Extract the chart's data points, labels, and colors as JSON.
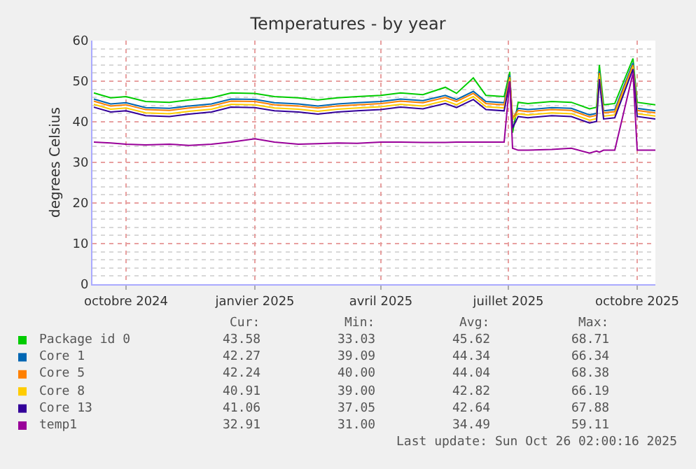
{
  "chart_data": {
    "type": "line",
    "title": "Temperatures - by year",
    "ylabel": "degrees Celsius",
    "x": [
      "2024-09-08",
      "2024-09-20",
      "2024-10-01",
      "2024-10-15",
      "2024-11-01",
      "2024-11-15",
      "2024-12-01",
      "2024-12-15",
      "2025-01-01",
      "2025-01-15",
      "2025-02-01",
      "2025-02-15",
      "2025-03-01",
      "2025-03-15",
      "2025-04-01",
      "2025-04-15",
      "2025-05-01",
      "2025-05-17",
      "2025-05-25",
      "2025-06-06",
      "2025-06-15",
      "2025-06-28",
      "2025-07-02",
      "2025-07-04",
      "2025-07-08",
      "2025-07-15",
      "2025-08-01",
      "2025-08-15",
      "2025-08-28",
      "2025-09-02",
      "2025-09-04",
      "2025-09-07",
      "2025-09-15",
      "2025-09-28",
      "2025-10-01",
      "2025-10-14"
    ],
    "series": [
      {
        "name": "Package id 0",
        "color": "#00cc00",
        "values": [
          47.1,
          45.9,
          46.2,
          45.0,
          44.8,
          45.4,
          45.9,
          47.1,
          47.0,
          46.2,
          45.9,
          45.4,
          45.9,
          46.2,
          46.5,
          47.1,
          46.7,
          48.5,
          47.0,
          50.8,
          46.5,
          46.2,
          52.3,
          37.3,
          44.8,
          44.5,
          45.0,
          44.8,
          43.2,
          43.6,
          54.0,
          44.2,
          44.5,
          55.6,
          44.8,
          44.2
        ]
      },
      {
        "name": "Core 1",
        "color": "#0066b3",
        "values": [
          45.6,
          44.4,
          44.7,
          43.5,
          43.3,
          43.9,
          44.4,
          45.6,
          45.5,
          44.7,
          44.4,
          43.9,
          44.4,
          44.7,
          45.0,
          45.6,
          45.2,
          46.5,
          45.5,
          47.5,
          45.0,
          44.7,
          51.5,
          40.5,
          43.3,
          43.0,
          43.5,
          43.3,
          41.7,
          42.1,
          52.5,
          42.7,
          43.0,
          54.5,
          43.3,
          42.7
        ]
      },
      {
        "name": "Core 5",
        "color": "#ff8000",
        "values": [
          45.1,
          43.9,
          44.2,
          43.0,
          42.8,
          43.4,
          43.9,
          45.1,
          45.0,
          44.2,
          43.9,
          43.4,
          43.9,
          44.2,
          44.5,
          45.1,
          44.7,
          46.0,
          45.0,
          47.0,
          44.5,
          44.2,
          51.0,
          41.0,
          42.8,
          42.5,
          43.0,
          42.8,
          41.2,
          41.6,
          52.0,
          42.2,
          42.5,
          54.0,
          42.8,
          42.2
        ]
      },
      {
        "name": "Core 8",
        "color": "#ffcc00",
        "values": [
          44.3,
          43.1,
          43.4,
          42.2,
          42.0,
          42.6,
          43.1,
          44.3,
          44.2,
          43.4,
          43.1,
          42.6,
          43.1,
          43.4,
          43.7,
          44.3,
          43.9,
          45.2,
          44.2,
          46.2,
          43.7,
          43.4,
          50.5,
          40.5,
          42.0,
          41.7,
          42.2,
          42.0,
          40.4,
          40.8,
          51.5,
          41.4,
          41.7,
          53.5,
          42.0,
          41.4
        ]
      },
      {
        "name": "Core 13",
        "color": "#330099",
        "values": [
          43.6,
          42.4,
          42.7,
          41.5,
          41.3,
          41.9,
          42.4,
          43.6,
          43.5,
          42.7,
          42.4,
          41.9,
          42.4,
          42.7,
          43.0,
          43.6,
          43.2,
          44.5,
          43.5,
          45.5,
          43.0,
          42.7,
          50.0,
          38.5,
          41.3,
          41.0,
          41.5,
          41.3,
          39.7,
          40.1,
          50.5,
          40.7,
          41.0,
          53.0,
          41.3,
          40.7
        ]
      },
      {
        "name": "temp1",
        "color": "#990099",
        "values": [
          35.0,
          34.8,
          34.5,
          34.3,
          34.5,
          34.2,
          34.5,
          35.0,
          35.8,
          35.0,
          34.5,
          34.6,
          34.8,
          34.7,
          35.0,
          35.0,
          34.9,
          34.9,
          35.0,
          35.0,
          35.0,
          35.0,
          50.0,
          33.5,
          33.0,
          33.0,
          33.2,
          33.5,
          32.3,
          32.8,
          32.5,
          33.0,
          33.0,
          52.0,
          33.0,
          33.0
        ]
      }
    ],
    "xlim": [
      "2024-09-07",
      "2025-10-14"
    ],
    "xticks": [
      {
        "value": "2024-10-01",
        "label": "octobre 2024"
      },
      {
        "value": "2025-01-01",
        "label": "janvier 2025"
      },
      {
        "value": "2025-04-01",
        "label": "avril 2025"
      },
      {
        "value": "2025-07-01",
        "label": "juillet 2025"
      },
      {
        "value": "2025-10-01",
        "label": "octobre 2025"
      }
    ],
    "ylim": [
      0,
      60
    ],
    "yticks": [
      0,
      10,
      20,
      30,
      40,
      50,
      60
    ],
    "grid": true,
    "legend": "bottom",
    "line_style": "solid",
    "annotations": [
      "Cur:",
      "Min:",
      "Avg:",
      "Max:",
      "43.58",
      "33.03",
      "45.62",
      "68.71",
      "42.27",
      "39.09",
      "44.34",
      "66.34",
      "42.24",
      "40.00",
      "44.04",
      "68.38",
      "40.91",
      "39.00",
      "42.82",
      "66.19",
      "41.06",
      "37.05",
      "42.64",
      "67.88",
      "32.91",
      "31.00",
      "34.49",
      "59.11",
      "Last update: Sun Oct 26 02:00:16 2025"
    ]
  }
}
